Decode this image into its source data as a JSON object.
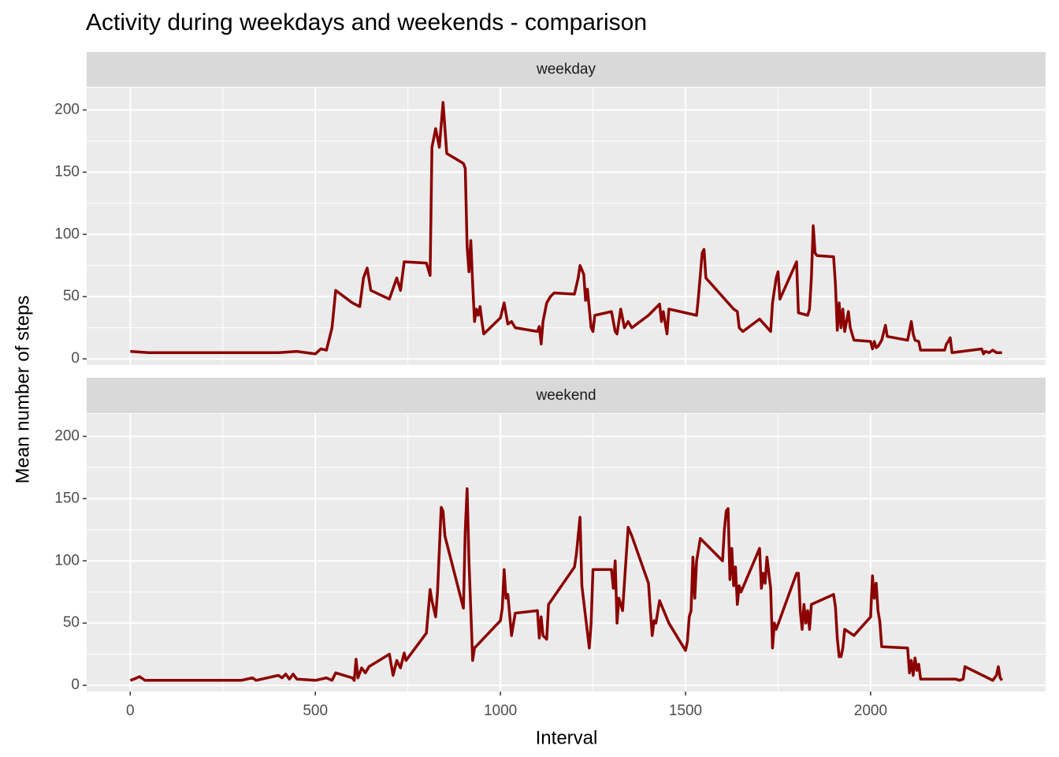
{
  "chart_data": {
    "type": "line",
    "title": "Activity during weekdays and weekends - comparison",
    "xlabel": "Interval",
    "ylabel": "Mean number of steps",
    "xlim": [
      -117.75,
      2472.75
    ],
    "ylim": [
      -5,
      218
    ],
    "xticks": [
      0,
      500,
      1000,
      1500,
      2000
    ],
    "yticks": [
      0,
      50,
      100,
      150,
      200
    ],
    "grid": true,
    "series": [
      {
        "name": "weekday",
        "color": "#8b0000",
        "x": [
          0,
          50,
          100,
          200,
          300,
          400,
          450,
          500,
          515,
          530,
          545,
          555,
          600,
          620,
          630,
          640,
          650,
          700,
          720,
          730,
          740,
          800,
          810,
          815,
          825,
          835,
          845,
          855,
          900,
          905,
          910,
          915,
          920,
          925,
          930,
          935,
          940,
          945,
          950,
          955,
          1000,
          1010,
          1020,
          1030,
          1040,
          1100,
          1105,
          1110,
          1115,
          1125,
          1135,
          1145,
          1200,
          1210,
          1215,
          1225,
          1230,
          1235,
          1245,
          1250,
          1255,
          1300,
          1310,
          1315,
          1325,
          1335,
          1345,
          1355,
          1400,
          1430,
          1435,
          1440,
          1450,
          1455,
          1530,
          1535,
          1545,
          1550,
          1555,
          1630,
          1640,
          1645,
          1655,
          1700,
          1730,
          1735,
          1745,
          1750,
          1755,
          1800,
          1805,
          1830,
          1835,
          1840,
          1845,
          1850,
          1855,
          1900,
          1905,
          1910,
          1915,
          1920,
          1925,
          1930,
          1935,
          1940,
          1945,
          1950,
          1955,
          2000,
          2005,
          2010,
          2015,
          2020,
          2030,
          2040,
          2045,
          2100,
          2110,
          2115,
          2120,
          2130,
          2135,
          2200,
          2205,
          2210,
          2215,
          2220,
          2300,
          2305,
          2310,
          2320,
          2330,
          2340,
          2355
        ],
        "values": [
          6,
          5,
          5,
          5,
          5,
          5,
          6,
          4,
          8,
          7,
          25,
          55,
          45,
          42,
          65,
          73,
          55,
          48,
          65,
          55,
          78,
          77,
          67,
          170,
          185,
          170,
          206,
          165,
          157,
          153,
          90,
          70,
          95,
          60,
          30,
          40,
          35,
          42,
          30,
          20,
          33,
          45,
          28,
          30,
          25,
          22,
          26,
          12,
          30,
          45,
          50,
          53,
          52,
          65,
          75,
          68,
          47,
          56,
          25,
          22,
          35,
          38,
          22,
          20,
          40,
          25,
          30,
          25,
          35,
          44,
          30,
          38,
          20,
          40,
          35,
          50,
          85,
          88,
          65,
          40,
          38,
          25,
          22,
          32,
          22,
          45,
          65,
          70,
          48,
          78,
          37,
          35,
          40,
          65,
          107,
          85,
          83,
          82,
          60,
          23,
          45,
          25,
          40,
          22,
          30,
          38,
          25,
          20,
          15,
          14,
          8,
          14,
          9,
          10,
          15,
          27,
          18,
          15,
          30,
          20,
          15,
          14,
          7,
          7,
          12,
          14,
          17,
          5,
          8,
          4,
          6,
          5,
          7,
          5,
          5
        ]
      },
      {
        "name": "weekend",
        "color": "#8b0000",
        "x": [
          0,
          10,
          25,
          40,
          100,
          200,
          300,
          330,
          340,
          400,
          410,
          420,
          430,
          440,
          450,
          500,
          530,
          545,
          555,
          600,
          605,
          610,
          615,
          625,
          635,
          645,
          700,
          710,
          720,
          730,
          740,
          745,
          800,
          810,
          815,
          825,
          830,
          840,
          845,
          850,
          900,
          905,
          910,
          915,
          925,
          930,
          1000,
          1005,
          1010,
          1015,
          1020,
          1030,
          1040,
          1100,
          1105,
          1110,
          1115,
          1125,
          1130,
          1200,
          1205,
          1210,
          1215,
          1220,
          1230,
          1240,
          1245,
          1250,
          1300,
          1305,
          1310,
          1315,
          1320,
          1330,
          1345,
          1355,
          1400,
          1405,
          1410,
          1415,
          1420,
          1430,
          1455,
          1500,
          1505,
          1510,
          1515,
          1520,
          1525,
          1530,
          1540,
          1550,
          1600,
          1605,
          1610,
          1615,
          1620,
          1625,
          1630,
          1635,
          1640,
          1645,
          1650,
          1700,
          1705,
          1710,
          1715,
          1720,
          1730,
          1735,
          1740,
          1745,
          1800,
          1805,
          1810,
          1815,
          1820,
          1825,
          1830,
          1835,
          1840,
          1900,
          1905,
          1910,
          1915,
          1920,
          1925,
          1930,
          1955,
          2000,
          2005,
          2010,
          2015,
          2020,
          2025,
          2030,
          2100,
          2105,
          2110,
          2115,
          2120,
          2125,
          2130,
          2135,
          2200,
          2230,
          2240,
          2250,
          2255,
          2330,
          2340,
          2345,
          2350,
          2355
        ],
        "values": [
          4,
          5,
          7,
          4,
          4,
          4,
          4,
          6,
          4,
          8,
          6,
          9,
          5,
          9,
          5,
          4,
          6,
          4,
          10,
          6,
          4,
          21,
          6,
          14,
          10,
          15,
          25,
          8,
          20,
          14,
          26,
          20,
          42,
          77,
          68,
          55,
          75,
          143,
          140,
          120,
          62,
          125,
          158,
          100,
          20,
          30,
          52,
          62,
          93,
          70,
          73,
          40,
          58,
          60,
          38,
          55,
          40,
          37,
          65,
          95,
          105,
          120,
          135,
          80,
          55,
          30,
          50,
          93,
          93,
          78,
          100,
          50,
          70,
          60,
          127,
          120,
          82,
          60,
          40,
          52,
          50,
          68,
          50,
          28,
          35,
          55,
          60,
          103,
          70,
          100,
          118,
          115,
          100,
          125,
          140,
          142,
          85,
          110,
          80,
          95,
          65,
          80,
          75,
          110,
          78,
          90,
          82,
          103,
          78,
          30,
          50,
          45,
          90,
          90,
          60,
          45,
          65,
          50,
          60,
          45,
          65,
          73,
          63,
          38,
          23,
          23,
          30,
          45,
          40,
          55,
          88,
          70,
          82,
          60,
          51,
          31,
          30,
          10,
          20,
          8,
          22,
          12,
          17,
          5,
          5,
          5,
          4,
          5,
          15,
          4,
          8,
          15,
          6,
          4
        ]
      }
    ]
  }
}
